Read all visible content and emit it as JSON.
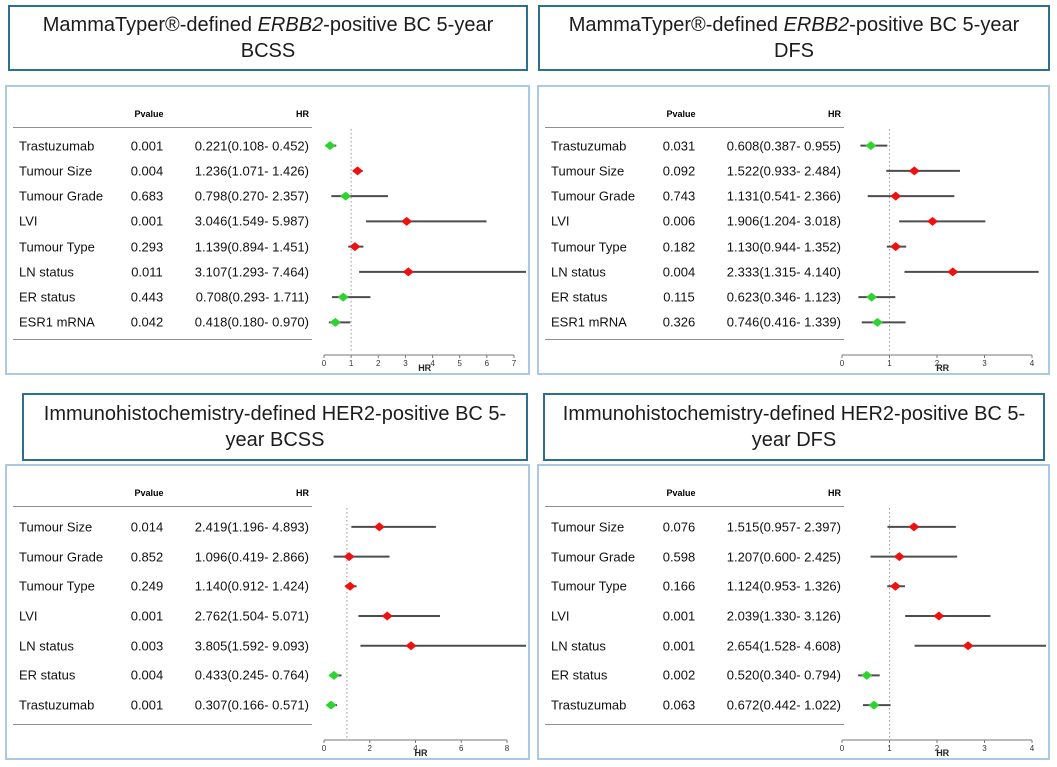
{
  "figure": {
    "colors": {
      "risk_marker": "#ee1111",
      "protective_marker": "#2fd32f",
      "ci_line": "#4d4d4d",
      "reference_line": "#9a9a9a",
      "title_border": "#2e6f8e",
      "panel_border": "#abc9e3",
      "axis_line": "#777777"
    }
  },
  "chart_data": [
    {
      "type": "scatter",
      "subtype": "forest-plot",
      "title_plain": "MammaTyper®-defined ERBB2-positive BC 5-year BCSS",
      "title_segments": [
        {
          "text": "MammaTyper®-defined ",
          "italic": false
        },
        {
          "text": "ERBB2",
          "italic": true
        },
        {
          "text": "-positive BC 5-year BCSS",
          "italic": false
        }
      ],
      "columns": {
        "pvalue": "Pvalue",
        "hr": "HR"
      },
      "x_axis": {
        "min": 0,
        "max": 7,
        "ticks": [
          0,
          1,
          2,
          3,
          4,
          5,
          6,
          7
        ],
        "label": "HR",
        "reference_line": 1
      },
      "rows": [
        {
          "label": "Trastuzumab",
          "pvalue": "0.001",
          "hr_ci": "0.221(0.108- 0.452)",
          "hr": 0.221,
          "ci_low": 0.108,
          "ci_high": 0.452
        },
        {
          "label": "Tumour Size",
          "pvalue": "0.004",
          "hr_ci": "1.236(1.071- 1.426)",
          "hr": 1.236,
          "ci_low": 1.071,
          "ci_high": 1.426
        },
        {
          "label": "Tumour Grade",
          "pvalue": "0.683",
          "hr_ci": "0.798(0.270- 2.357)",
          "hr": 0.798,
          "ci_low": 0.27,
          "ci_high": 2.357
        },
        {
          "label": "LVI",
          "pvalue": "0.001",
          "hr_ci": "3.046(1.549- 5.987)",
          "hr": 3.046,
          "ci_low": 1.549,
          "ci_high": 5.987
        },
        {
          "label": "Tumour Type",
          "pvalue": "0.293",
          "hr_ci": "1.139(0.894- 1.451)",
          "hr": 1.139,
          "ci_low": 0.894,
          "ci_high": 1.451
        },
        {
          "label": "LN status",
          "pvalue": "0.011",
          "hr_ci": "3.107(1.293- 7.464)",
          "hr": 3.107,
          "ci_low": 1.293,
          "ci_high": 7.464
        },
        {
          "label": "ER status",
          "pvalue": "0.443",
          "hr_ci": "0.708(0.293- 1.711)",
          "hr": 0.708,
          "ci_low": 0.293,
          "ci_high": 1.711
        },
        {
          "label": "ESR1 mRNA",
          "pvalue": "0.042",
          "hr_ci": "0.418(0.180- 0.970)",
          "hr": 0.418,
          "ci_low": 0.18,
          "ci_high": 0.97
        }
      ]
    },
    {
      "type": "scatter",
      "subtype": "forest-plot",
      "title_plain": "MammaTyper®-defined ERBB2-positive BC 5-year DFS",
      "title_segments": [
        {
          "text": "MammaTyper®-defined ",
          "italic": false
        },
        {
          "text": "ERBB2",
          "italic": true
        },
        {
          "text": "-positive BC 5-year DFS",
          "italic": false
        }
      ],
      "columns": {
        "pvalue": "Pvalue",
        "hr": "HR"
      },
      "x_axis": {
        "min": 0,
        "max": 4,
        "ticks": [
          0,
          1,
          2,
          3,
          4
        ],
        "label": "RR",
        "reference_line": 1
      },
      "rows": [
        {
          "label": "Trastuzumab",
          "pvalue": "0.031",
          "hr_ci": "0.608(0.387- 0.955)",
          "hr": 0.608,
          "ci_low": 0.387,
          "ci_high": 0.955
        },
        {
          "label": "Tumour Size",
          "pvalue": "0.092",
          "hr_ci": "1.522(0.933- 2.484)",
          "hr": 1.522,
          "ci_low": 0.933,
          "ci_high": 2.484
        },
        {
          "label": "Tumour Grade",
          "pvalue": "0.743",
          "hr_ci": "1.131(0.541- 2.366)",
          "hr": 1.131,
          "ci_low": 0.541,
          "ci_high": 2.366
        },
        {
          "label": "LVI",
          "pvalue": "0.006",
          "hr_ci": "1.906(1.204- 3.018)",
          "hr": 1.906,
          "ci_low": 1.204,
          "ci_high": 3.018
        },
        {
          "label": "Tumour Type",
          "pvalue": "0.182",
          "hr_ci": "1.130(0.944- 1.352)",
          "hr": 1.13,
          "ci_low": 0.944,
          "ci_high": 1.352
        },
        {
          "label": "LN status",
          "pvalue": "0.004",
          "hr_ci": "2.333(1.315- 4.140)",
          "hr": 2.333,
          "ci_low": 1.315,
          "ci_high": 4.14
        },
        {
          "label": "ER status",
          "pvalue": "0.115",
          "hr_ci": "0.623(0.346- 1.123)",
          "hr": 0.623,
          "ci_low": 0.346,
          "ci_high": 1.123
        },
        {
          "label": "ESR1 mRNA",
          "pvalue": "0.326",
          "hr_ci": "0.746(0.416- 1.339)",
          "hr": 0.746,
          "ci_low": 0.416,
          "ci_high": 1.339
        }
      ]
    },
    {
      "type": "scatter",
      "subtype": "forest-plot",
      "title_plain": "Immunohistochemistry-defined HER2-positive BC 5-year BCSS",
      "title_segments": [
        {
          "text": "Immunohistochemistry-defined HER2-positive BC 5-year BCSS",
          "italic": false
        }
      ],
      "columns": {
        "pvalue": "Pvalue",
        "hr": "HR"
      },
      "x_axis": {
        "min": 0,
        "max": 8,
        "ticks": [
          0,
          2,
          4,
          6,
          8
        ],
        "label": "HR",
        "reference_line": 1
      },
      "rows": [
        {
          "label": "Tumour Size",
          "pvalue": "0.014",
          "hr_ci": "2.419(1.196- 4.893)",
          "hr": 2.419,
          "ci_low": 1.196,
          "ci_high": 4.893
        },
        {
          "label": "Tumour Grade",
          "pvalue": "0.852",
          "hr_ci": "1.096(0.419- 2.866)",
          "hr": 1.096,
          "ci_low": 0.419,
          "ci_high": 2.866
        },
        {
          "label": "Tumour Type",
          "pvalue": "0.249",
          "hr_ci": "1.140(0.912- 1.424)",
          "hr": 1.14,
          "ci_low": 0.912,
          "ci_high": 1.424
        },
        {
          "label": "LVI",
          "pvalue": "0.001",
          "hr_ci": "2.762(1.504- 5.071)",
          "hr": 2.762,
          "ci_low": 1.504,
          "ci_high": 5.071
        },
        {
          "label": "LN status",
          "pvalue": "0.003",
          "hr_ci": "3.805(1.592- 9.093)",
          "hr": 3.805,
          "ci_low": 1.592,
          "ci_high": 9.093
        },
        {
          "label": "ER status",
          "pvalue": "0.004",
          "hr_ci": "0.433(0.245- 0.764)",
          "hr": 0.433,
          "ci_low": 0.245,
          "ci_high": 0.764
        },
        {
          "label": "Trastuzumab",
          "pvalue": "0.001",
          "hr_ci": "0.307(0.166- 0.571)",
          "hr": 0.307,
          "ci_low": 0.166,
          "ci_high": 0.571
        }
      ]
    },
    {
      "type": "scatter",
      "subtype": "forest-plot",
      "title_plain": "Immunohistochemistry-defined HER2-positive BC 5-year DFS",
      "title_segments": [
        {
          "text": "Immunohistochemistry-defined HER2-positive BC 5-year DFS",
          "italic": false
        }
      ],
      "columns": {
        "pvalue": "Pvalue",
        "hr": "HR"
      },
      "x_axis": {
        "min": 0,
        "max": 4,
        "ticks": [
          0,
          1,
          2,
          3,
          4
        ],
        "label": "HR",
        "reference_line": 1
      },
      "rows": [
        {
          "label": "Tumour Size",
          "pvalue": "0.076",
          "hr_ci": "1.515(0.957- 2.397)",
          "hr": 1.515,
          "ci_low": 0.957,
          "ci_high": 2.397
        },
        {
          "label": "Tumour Grade",
          "pvalue": "0.598",
          "hr_ci": "1.207(0.600- 2.425)",
          "hr": 1.207,
          "ci_low": 0.6,
          "ci_high": 2.425
        },
        {
          "label": "Tumour Type",
          "pvalue": "0.166",
          "hr_ci": "1.124(0.953- 1.326)",
          "hr": 1.124,
          "ci_low": 0.953,
          "ci_high": 1.326
        },
        {
          "label": "LVI",
          "pvalue": "0.001",
          "hr_ci": "2.039(1.330- 3.126)",
          "hr": 2.039,
          "ci_low": 1.33,
          "ci_high": 3.126
        },
        {
          "label": "LN status",
          "pvalue": "0.001",
          "hr_ci": "2.654(1.528- 4.608)",
          "hr": 2.654,
          "ci_low": 1.528,
          "ci_high": 4.608
        },
        {
          "label": "ER status",
          "pvalue": "0.002",
          "hr_ci": "0.520(0.340- 0.794)",
          "hr": 0.52,
          "ci_low": 0.34,
          "ci_high": 0.794
        },
        {
          "label": "Trastuzumab",
          "pvalue": "0.063",
          "hr_ci": "0.672(0.442- 1.022)",
          "hr": 0.672,
          "ci_low": 0.442,
          "ci_high": 1.022
        }
      ]
    }
  ]
}
